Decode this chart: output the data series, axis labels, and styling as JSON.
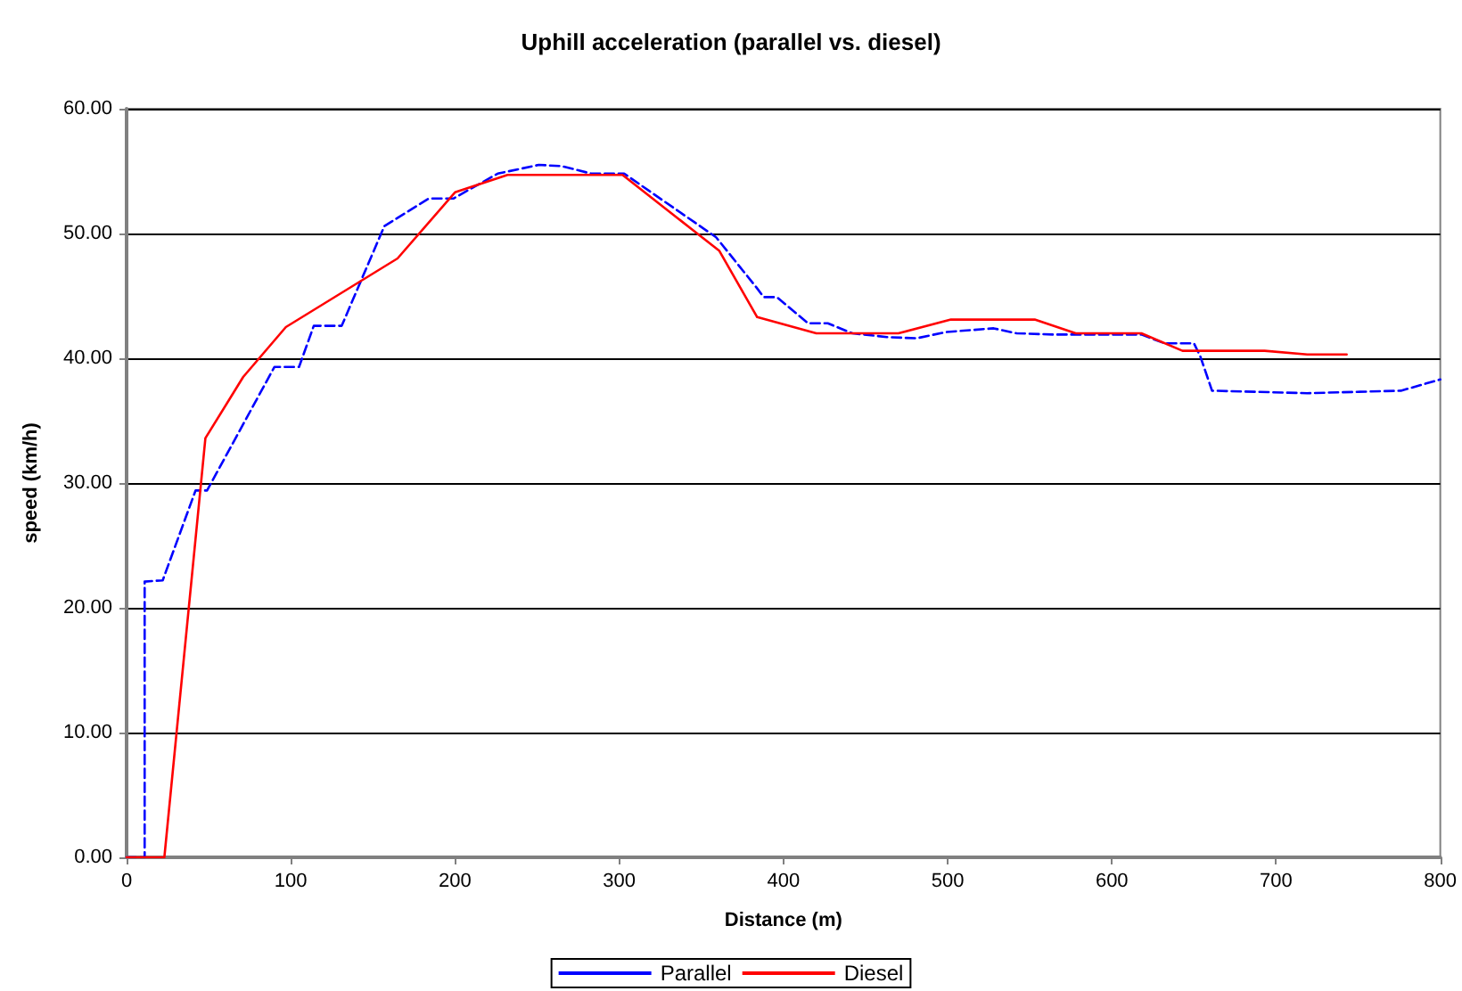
{
  "chart_data": {
    "type": "line",
    "title": "Uphill acceleration (parallel vs. diesel)",
    "xlabel": "Distance (m)",
    "ylabel": "speed (km/h)",
    "xlim": [
      0,
      800
    ],
    "xticks": [
      0,
      100,
      200,
      300,
      400,
      500,
      600,
      700,
      800
    ],
    "ylim": [
      0,
      60
    ],
    "yticks": [
      {
        "value": 0,
        "label": "0.00"
      },
      {
        "value": 10,
        "label": "10.00"
      },
      {
        "value": 20,
        "label": "20.00"
      },
      {
        "value": 30,
        "label": "30.00"
      },
      {
        "value": 40,
        "label": "40.00"
      },
      {
        "value": 50,
        "label": "50.00"
      },
      {
        "value": 60,
        "label": "60.00"
      }
    ],
    "grid": "y",
    "legend": "bottom",
    "marker": "none",
    "series": [
      {
        "name": "Parallel",
        "color": "#0000ff",
        "line_style": "dashed",
        "x": [
          0,
          11,
          11,
          22,
          42,
          49,
          90,
          105,
          114,
          131,
          157,
          184,
          199,
          226,
          251,
          265,
          283,
          303,
          359,
          384,
          388,
          396,
          415,
          427,
          442,
          463,
          481,
          499,
          528,
          542,
          564,
          618,
          632,
          650,
          654,
          661,
          719,
          776,
          800
        ],
        "values": [
          0,
          0,
          22.1,
          22.2,
          29.4,
          29.4,
          39.3,
          39.3,
          42.6,
          42.6,
          50.6,
          52.8,
          52.8,
          54.8,
          55.5,
          55.4,
          54.8,
          54.8,
          49.7,
          45.6,
          44.9,
          44.9,
          42.8,
          42.8,
          42.0,
          41.7,
          41.6,
          42.1,
          42.4,
          42.0,
          41.9,
          41.9,
          41.2,
          41.2,
          40.1,
          37.4,
          37.2,
          37.4,
          38.3
        ]
      },
      {
        "name": "Diesel",
        "color": "#ff0000",
        "line_style": "solid",
        "x": [
          0,
          23,
          48,
          71,
          97,
          165,
          200,
          232,
          302,
          361,
          384,
          420,
          470,
          502,
          553,
          578,
          618,
          643,
          693,
          719,
          743
        ],
        "values": [
          0,
          0,
          33.6,
          38.5,
          42.5,
          48.0,
          53.3,
          54.7,
          54.7,
          48.6,
          43.3,
          42.0,
          42.0,
          43.1,
          43.1,
          42.0,
          42.0,
          40.6,
          40.6,
          40.3,
          40.3
        ]
      }
    ]
  }
}
